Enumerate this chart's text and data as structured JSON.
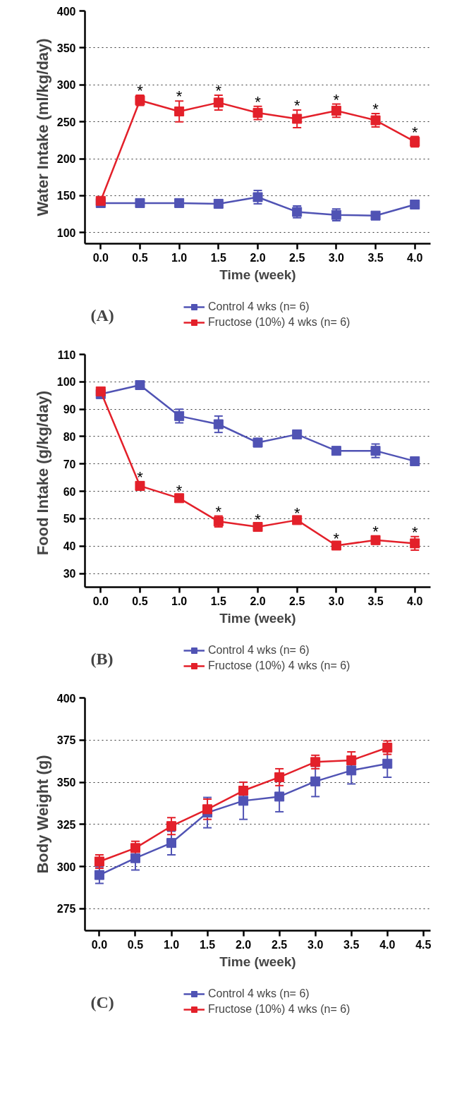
{
  "chart_data": [
    {
      "type": "line",
      "xlabel": "Time (week)",
      "ylabel": "Water Intake (ml/kg/day)",
      "x": [
        0,
        0.5,
        1,
        1.5,
        2,
        2.5,
        3,
        3.5,
        4
      ],
      "series": [
        {
          "name": "Control 4 wks (n= 6)",
          "color": "#5053b4",
          "values": [
            140,
            140,
            140,
            139,
            148,
            128,
            124,
            123,
            138
          ],
          "errors": [
            5,
            4,
            4,
            4,
            9,
            8,
            8,
            4,
            4
          ]
        },
        {
          "name": "Fructose (10%) 4 wks (n= 6)",
          "color": "#e3202a",
          "values": [
            143,
            279,
            264,
            276,
            262,
            254,
            265,
            252,
            223
          ],
          "errors": [
            4,
            7,
            14,
            10,
            9,
            12,
            9,
            9,
            7
          ]
        }
      ],
      "xlim": [
        -0.2,
        4.2
      ],
      "xticks": [
        {
          "value": 0,
          "label": "0.0"
        },
        {
          "value": 0.5,
          "label": "0.5"
        },
        {
          "value": 1,
          "label": "1.0"
        },
        {
          "value": 1.5,
          "label": "1.5"
        },
        {
          "value": 2,
          "label": "2.0"
        },
        {
          "value": 2.5,
          "label": "2.5"
        },
        {
          "value": 3,
          "label": "3.0"
        },
        {
          "value": 3.5,
          "label": "3.5"
        },
        {
          "value": 4,
          "label": "4.0"
        }
      ],
      "ylim": [
        85,
        400
      ],
      "yticks": [
        100,
        150,
        200,
        250,
        300,
        350,
        400
      ],
      "grid": "y",
      "legend": "bottom",
      "marker": "square",
      "line_style": "solid",
      "annotations": [
        "(A)",
        {
          "text": "*",
          "x": 0.5,
          "y": 286
        },
        {
          "text": "*",
          "x": 1,
          "y": 278
        },
        {
          "text": "*",
          "x": 1.5,
          "y": 286
        },
        {
          "text": "*",
          "x": 2,
          "y": 271
        },
        {
          "text": "*",
          "x": 2.5,
          "y": 266
        },
        {
          "text": "*",
          "x": 3,
          "y": 274
        },
        {
          "text": "*",
          "x": 3.5,
          "y": 261
        },
        {
          "text": "*",
          "x": 4,
          "y": 230
        }
      ]
    },
    {
      "type": "line",
      "xlabel": "Time (week)",
      "ylabel": "Food  Intake (g/kg/day)",
      "x": [
        0,
        0.5,
        1,
        1.5,
        2,
        2.5,
        3,
        3.5,
        4
      ],
      "series": [
        {
          "name": "Control 4 wks (n= 6)",
          "color": "#5053b4",
          "values": [
            95.5,
            98.8,
            87.5,
            84.5,
            77.8,
            80.8,
            74.8,
            74.8,
            71
          ],
          "errors": [
            1.5,
            1,
            2.5,
            3,
            1.5,
            1.5,
            1,
            2.5,
            1
          ]
        },
        {
          "name": "Fructose (10%) 4 wks (n= 6)",
          "color": "#e3202a",
          "values": [
            96.5,
            62,
            57.5,
            49,
            47,
            49.5,
            40.2,
            42.2,
            41
          ],
          "errors": [
            1,
            1.5,
            1,
            2,
            1,
            1,
            1,
            1.5,
            2.5
          ]
        }
      ],
      "xlim": [
        -0.2,
        4.2
      ],
      "xticks": [
        {
          "value": 0,
          "label": "0.0"
        },
        {
          "value": 0.5,
          "label": "0.5"
        },
        {
          "value": 1,
          "label": "1.0"
        },
        {
          "value": 1.5,
          "label": "1.5"
        },
        {
          "value": 2,
          "label": "2.0"
        },
        {
          "value": 2.5,
          "label": "2.5"
        },
        {
          "value": 3,
          "label": "3.0"
        },
        {
          "value": 3.5,
          "label": "3.5"
        },
        {
          "value": 4,
          "label": "4.0"
        }
      ],
      "ylim": [
        25,
        110
      ],
      "yticks": [
        30,
        40,
        50,
        60,
        70,
        80,
        90,
        100,
        110
      ],
      "grid": "y",
      "legend": "bottom",
      "marker": "square",
      "line_style": "solid",
      "annotations": [
        "(B)",
        {
          "text": "*",
          "x": 0.5,
          "y": 63.5
        },
        {
          "text": "*",
          "x": 1,
          "y": 58.5
        },
        {
          "text": "*",
          "x": 1.5,
          "y": 51
        },
        {
          "text": "*",
          "x": 2,
          "y": 48
        },
        {
          "text": "*",
          "x": 2.5,
          "y": 50.5
        },
        {
          "text": "*",
          "x": 3,
          "y": 41.2
        },
        {
          "text": "*",
          "x": 3.5,
          "y": 43.7
        },
        {
          "text": "*",
          "x": 4,
          "y": 43.5
        }
      ]
    },
    {
      "type": "line",
      "xlabel": "Time (week)",
      "ylabel": "Body Weight (g)",
      "x": [
        0,
        0.5,
        1,
        1.5,
        2,
        2.5,
        3,
        3.5,
        4
      ],
      "series": [
        {
          "name": "Control 4 wks (n= 6)",
          "color": "#5053b4",
          "values": [
            295,
            305,
            314,
            332,
            339,
            341.5,
            350.5,
            357,
            361
          ],
          "errors": [
            5,
            7,
            7,
            9,
            11,
            9,
            9,
            8,
            8
          ]
        },
        {
          "name": "Fructose (10%) 4 wks (n= 6)",
          "color": "#e3202a",
          "values": [
            303,
            311,
            324,
            334,
            345,
            353,
            362,
            363,
            370.5
          ],
          "errors": [
            4,
            4,
            5,
            6,
            5,
            5,
            4,
            5,
            4
          ]
        }
      ],
      "xlim": [
        -0.2,
        4.6
      ],
      "xticks": [
        {
          "value": 0,
          "label": "0.0"
        },
        {
          "value": 0.5,
          "label": "0.5"
        },
        {
          "value": 1,
          "label": "1.0"
        },
        {
          "value": 1.5,
          "label": "1.5"
        },
        {
          "value": 2,
          "label": "2.0"
        },
        {
          "value": 2.5,
          "label": "2.5"
        },
        {
          "value": 3,
          "label": "3.0"
        },
        {
          "value": 3.5,
          "label": "3.5"
        },
        {
          "value": 4,
          "label": "4.0"
        },
        {
          "value": 4.5,
          "label": "4.5"
        }
      ],
      "ylim": [
        262,
        400
      ],
      "yticks": [
        275,
        300,
        325,
        350,
        375,
        400
      ],
      "grid": "y",
      "legend": "bottom",
      "marker": "square",
      "line_style": "solid",
      "annotations": [
        "(C)"
      ]
    }
  ]
}
